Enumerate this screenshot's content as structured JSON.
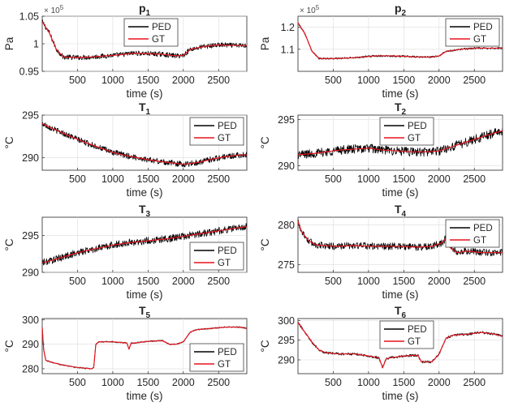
{
  "chart_data": [
    {
      "type": "line",
      "title": "p",
      "title_sub": "1",
      "xlabel": "time (s)",
      "ylabel": "Pa",
      "exponent": "× 10",
      "exponent_power": "5",
      "xlim": [
        0,
        2900
      ],
      "ylim": [
        0.95,
        1.05
      ],
      "xticks": [
        500,
        1000,
        1500,
        2000,
        2500
      ],
      "xtick_labels": [
        "500",
        "1000",
        "1500",
        "2000",
        "2500"
      ],
      "yticks": [
        0.95,
        1.0,
        1.05
      ],
      "ytick_labels": [
        "0.95",
        "1",
        "1.05"
      ],
      "legend": [
        "PED",
        "GT"
      ],
      "legend_loc": "top-middle",
      "series": [
        {
          "name": "PED",
          "color": "#000000",
          "noise": 0.0045,
          "x": [
            0,
            100,
            200,
            300,
            500,
            700,
            900,
            1100,
            1300,
            1500,
            1700,
            1900,
            2000,
            2100,
            2300,
            2500,
            2700,
            2900
          ],
          "y": [
            1.04,
            1.02,
            0.99,
            0.976,
            0.975,
            0.976,
            0.978,
            0.98,
            0.983,
            0.982,
            0.981,
            0.978,
            0.979,
            0.99,
            0.995,
            0.998,
            0.997,
            0.997
          ]
        },
        {
          "name": "GT",
          "color": "#e8141e",
          "noise": 0,
          "x": [
            0,
            100,
            200,
            300,
            500,
            700,
            900,
            1100,
            1300,
            1500,
            1700,
            1900,
            2000,
            2100,
            2300,
            2500,
            2700,
            2900
          ],
          "y": [
            1.04,
            1.02,
            0.99,
            0.976,
            0.975,
            0.976,
            0.978,
            0.98,
            0.983,
            0.982,
            0.981,
            0.978,
            0.979,
            0.99,
            0.995,
            0.998,
            0.997,
            0.997
          ]
        }
      ]
    },
    {
      "type": "line",
      "title": "p",
      "title_sub": "2",
      "xlabel": "time (s)",
      "ylabel": "Pa",
      "exponent": "× 10",
      "exponent_power": "5",
      "xlim": [
        0,
        2900
      ],
      "ylim": [
        1.0,
        1.25
      ],
      "xticks": [
        500,
        1000,
        1500,
        2000,
        2500
      ],
      "xtick_labels": [
        "500",
        "1000",
        "1500",
        "2000",
        "2500"
      ],
      "yticks": [
        1.1,
        1.2
      ],
      "ytick_labels": [
        "1.1",
        "1.2"
      ],
      "legend": [
        "PED",
        "GT"
      ],
      "legend_loc": "top-right",
      "series": [
        {
          "name": "PED",
          "color": "#000000",
          "noise": 0.004,
          "x": [
            0,
            100,
            200,
            300,
            500,
            700,
            900,
            1100,
            1300,
            1500,
            1700,
            1900,
            2000,
            2100,
            2300,
            2500,
            2700,
            2900
          ],
          "y": [
            1.22,
            1.17,
            1.09,
            1.058,
            1.058,
            1.06,
            1.065,
            1.07,
            1.07,
            1.068,
            1.065,
            1.065,
            1.07,
            1.09,
            1.1,
            1.105,
            1.105,
            1.105
          ]
        },
        {
          "name": "GT",
          "color": "#e8141e",
          "noise": 0,
          "x": [
            0,
            100,
            200,
            300,
            500,
            700,
            900,
            1100,
            1300,
            1500,
            1700,
            1900,
            2000,
            2100,
            2300,
            2500,
            2700,
            2900
          ],
          "y": [
            1.22,
            1.17,
            1.09,
            1.058,
            1.058,
            1.06,
            1.065,
            1.07,
            1.07,
            1.068,
            1.065,
            1.065,
            1.07,
            1.09,
            1.1,
            1.105,
            1.105,
            1.105
          ]
        }
      ]
    },
    {
      "type": "line",
      "title": "T",
      "title_sub": "1",
      "xlabel": "time (s)",
      "ylabel": "°C",
      "exponent": "",
      "exponent_power": "",
      "xlim": [
        0,
        2900
      ],
      "ylim": [
        288.5,
        295
      ],
      "xticks": [
        500,
        1000,
        1500,
        2000,
        2500
      ],
      "xtick_labels": [
        "500",
        "1000",
        "1500",
        "2000",
        "2500"
      ],
      "yticks": [
        290,
        295
      ],
      "ytick_labels": [
        "290",
        "295"
      ],
      "legend": [
        "PED",
        "GT"
      ],
      "legend_loc": "top-right",
      "series": [
        {
          "name": "PED",
          "color": "#000000",
          "noise": 0.35,
          "x": [
            0,
            200,
            400,
            600,
            800,
            1000,
            1200,
            1400,
            1600,
            1800,
            2000,
            2200,
            2400,
            2600,
            2800,
            2900
          ],
          "y": [
            294,
            293.2,
            292.5,
            291.8,
            291.2,
            290.6,
            290.2,
            289.9,
            289.6,
            289.4,
            289.2,
            289.4,
            289.8,
            290.1,
            290.3,
            290.3
          ]
        },
        {
          "name": "GT",
          "color": "#e8141e",
          "noise": 0,
          "x": [
            0,
            200,
            400,
            600,
            800,
            1000,
            1200,
            1400,
            1600,
            1800,
            2000,
            2200,
            2400,
            2600,
            2800,
            2900
          ],
          "y": [
            294,
            293.2,
            292.5,
            291.8,
            291.2,
            290.6,
            290.2,
            289.9,
            289.6,
            289.4,
            289.2,
            289.4,
            289.8,
            290.1,
            290.3,
            290.3
          ]
        }
      ]
    },
    {
      "type": "line",
      "title": "T",
      "title_sub": "2",
      "xlabel": "time (s)",
      "ylabel": "°C",
      "exponent": "",
      "exponent_power": "",
      "xlim": [
        0,
        2900
      ],
      "ylim": [
        289.5,
        295.5
      ],
      "xticks": [
        500,
        1000,
        1500,
        2000,
        2500
      ],
      "xtick_labels": [
        "500",
        "1000",
        "1500",
        "2000",
        "2500"
      ],
      "yticks": [
        290,
        295
      ],
      "ytick_labels": [
        "290",
        "295"
      ],
      "legend": [
        "PED",
        "GT"
      ],
      "legend_loc": "top-middle",
      "series": [
        {
          "name": "PED",
          "color": "#000000",
          "noise": 0.5,
          "x": [
            0,
            200,
            400,
            600,
            800,
            1000,
            1200,
            1400,
            1600,
            1800,
            2000,
            2200,
            2400,
            2600,
            2800,
            2900
          ],
          "y": [
            291.2,
            291.3,
            291.5,
            291.7,
            291.8,
            291.9,
            291.7,
            291.6,
            291.5,
            291.5,
            291.6,
            292.1,
            292.6,
            293.1,
            293.6,
            293.8
          ]
        },
        {
          "name": "GT",
          "color": "#e8141e",
          "noise": 0,
          "x": [
            0,
            200,
            400,
            600,
            800,
            1000,
            1200,
            1400,
            1600,
            1800,
            2000,
            2200,
            2400,
            2600,
            2800,
            2900
          ],
          "y": [
            291.2,
            291.3,
            291.5,
            291.7,
            291.8,
            291.9,
            291.7,
            291.6,
            291.5,
            291.5,
            291.6,
            292.1,
            292.6,
            293.1,
            293.6,
            293.8
          ]
        }
      ]
    },
    {
      "type": "line",
      "title": "T",
      "title_sub": "3",
      "xlabel": "time (s)",
      "ylabel": "°C",
      "exponent": "",
      "exponent_power": "",
      "xlim": [
        0,
        2900
      ],
      "ylim": [
        290,
        297.5
      ],
      "xticks": [
        500,
        1000,
        1500,
        2000,
        2500
      ],
      "xtick_labels": [
        "500",
        "1000",
        "1500",
        "2000",
        "2500"
      ],
      "yticks": [
        290,
        295
      ],
      "ytick_labels": [
        "290",
        "295"
      ],
      "legend": [
        "PED",
        "GT"
      ],
      "legend_loc": "bottom-right",
      "series": [
        {
          "name": "PED",
          "color": "#000000",
          "noise": 0.5,
          "x": [
            0,
            200,
            400,
            600,
            800,
            1000,
            1200,
            1400,
            1600,
            1800,
            2000,
            2200,
            2400,
            2600,
            2800,
            2900
          ],
          "y": [
            291.3,
            291.8,
            292.4,
            292.9,
            293.3,
            293.7,
            294,
            294.2,
            294.4,
            294.6,
            294.9,
            295.2,
            295.5,
            295.8,
            296.1,
            296.2
          ]
        },
        {
          "name": "GT",
          "color": "#e8141e",
          "noise": 0,
          "x": [
            0,
            200,
            400,
            600,
            800,
            1000,
            1200,
            1400,
            1600,
            1800,
            2000,
            2200,
            2400,
            2600,
            2800,
            2900
          ],
          "y": [
            291.3,
            291.8,
            292.4,
            292.9,
            293.3,
            293.7,
            294,
            294.2,
            294.4,
            294.6,
            294.9,
            295.2,
            295.5,
            295.8,
            296.1,
            296.2
          ]
        }
      ]
    },
    {
      "type": "line",
      "title": "T",
      "title_sub": "4",
      "xlabel": "time (s)",
      "ylabel": "°C",
      "exponent": "",
      "exponent_power": "",
      "xlim": [
        0,
        2900
      ],
      "ylim": [
        274,
        281
      ],
      "xticks": [
        500,
        1000,
        1500,
        2000,
        2500
      ],
      "xtick_labels": [
        "500",
        "1000",
        "1500",
        "2000",
        "2500"
      ],
      "yticks": [
        275,
        280
      ],
      "ytick_labels": [
        "275",
        "280"
      ],
      "legend": [
        "PED",
        "GT"
      ],
      "legend_loc": "top-right",
      "series": [
        {
          "name": "PED",
          "color": "#000000",
          "noise": 0.45,
          "x": [
            0,
            50,
            150,
            250,
            500,
            800,
            1100,
            1400,
            1700,
            1900,
            2050,
            2100,
            2150,
            2250,
            2400,
            2600,
            2800,
            2900
          ],
          "y": [
            280.5,
            279.2,
            278,
            277.5,
            277.3,
            277.4,
            277.3,
            277.3,
            277.2,
            277.3,
            277.8,
            278.4,
            277.2,
            276.5,
            276.7,
            276.5,
            276.5,
            276.5
          ]
        },
        {
          "name": "GT",
          "color": "#e8141e",
          "noise": 0,
          "x": [
            0,
            50,
            150,
            250,
            500,
            800,
            1100,
            1400,
            1700,
            1900,
            2050,
            2100,
            2150,
            2250,
            2400,
            2600,
            2800,
            2900
          ],
          "y": [
            280.5,
            279.2,
            278,
            277.5,
            277.3,
            277.4,
            277.3,
            277.3,
            277.2,
            277.3,
            277.8,
            278.4,
            277.2,
            276.5,
            276.7,
            276.5,
            276.5,
            276.5
          ]
        }
      ]
    },
    {
      "type": "line",
      "title": "T",
      "title_sub": "5",
      "xlabel": "time (s)",
      "ylabel": "°C",
      "exponent": "",
      "exponent_power": "",
      "xlim": [
        0,
        2900
      ],
      "ylim": [
        278,
        300.5
      ],
      "xticks": [
        500,
        1000,
        1500,
        2000,
        2500
      ],
      "xtick_labels": [
        "500",
        "1000",
        "1500",
        "2000",
        "2500"
      ],
      "yticks": [
        280,
        290,
        300
      ],
      "ytick_labels": [
        "280",
        "290",
        "300"
      ],
      "legend": [
        "PED",
        "GT"
      ],
      "legend_loc": "bottom-right",
      "series": [
        {
          "name": "PED",
          "color": "#000000",
          "noise": 0.25,
          "x": [
            0,
            20,
            50,
            150,
            300,
            500,
            700,
            730,
            760,
            800,
            1000,
            1200,
            1230,
            1260,
            1300,
            1500,
            1700,
            1800,
            1900,
            2000,
            2100,
            2200,
            2400,
            2600,
            2800,
            2900
          ],
          "y": [
            297,
            288,
            283.5,
            282.5,
            281.5,
            280.5,
            280,
            280.5,
            290,
            291,
            291,
            290.5,
            288,
            290.5,
            290.5,
            291.2,
            291.5,
            290,
            290,
            291,
            295,
            296,
            296.5,
            297,
            297,
            296.5
          ]
        },
        {
          "name": "GT",
          "color": "#e8141e",
          "noise": 0,
          "x": [
            0,
            20,
            50,
            150,
            300,
            500,
            700,
            730,
            760,
            800,
            1000,
            1200,
            1230,
            1260,
            1300,
            1500,
            1700,
            1800,
            1900,
            2000,
            2100,
            2200,
            2400,
            2600,
            2800,
            2900
          ],
          "y": [
            297,
            288,
            283.5,
            282.5,
            281.5,
            280.5,
            280,
            280.5,
            290,
            291,
            291,
            290.5,
            288,
            290.5,
            290.5,
            291.2,
            291.5,
            290,
            290,
            291,
            295,
            296,
            296.5,
            297,
            297,
            296.5
          ]
        }
      ]
    },
    {
      "type": "line",
      "title": "T",
      "title_sub": "6",
      "xlabel": "time (s)",
      "ylabel": "°C",
      "exponent": "",
      "exponent_power": "",
      "xlim": [
        0,
        2900
      ],
      "ylim": [
        286.5,
        300.5
      ],
      "xticks": [
        500,
        1000,
        1500,
        2000,
        2500
      ],
      "xtick_labels": [
        "500",
        "1000",
        "1500",
        "2000",
        "2500"
      ],
      "yticks": [
        290,
        295,
        300
      ],
      "ytick_labels": [
        "290",
        "295",
        "300"
      ],
      "legend": [
        "PED",
        "GT"
      ],
      "legend_loc": "top-middle",
      "series": [
        {
          "name": "PED",
          "color": "#000000",
          "noise": 0.3,
          "x": [
            0,
            100,
            200,
            300,
            400,
            600,
            800,
            1000,
            1150,
            1200,
            1250,
            1300,
            1500,
            1700,
            1750,
            1800,
            1900,
            2000,
            2100,
            2200,
            2400,
            2600,
            2800,
            2900
          ],
          "y": [
            299.5,
            297,
            294.5,
            292.5,
            291.8,
            291.5,
            291.5,
            291,
            290.5,
            288,
            290.3,
            290.5,
            291,
            291.2,
            289.5,
            289.5,
            289.5,
            291.5,
            295.5,
            296.3,
            296.5,
            297,
            296.5,
            296
          ]
        },
        {
          "name": "GT",
          "color": "#e8141e",
          "noise": 0,
          "x": [
            0,
            100,
            200,
            300,
            400,
            600,
            800,
            1000,
            1150,
            1200,
            1250,
            1300,
            1500,
            1700,
            1750,
            1800,
            1900,
            2000,
            2100,
            2200,
            2400,
            2600,
            2800,
            2900
          ],
          "y": [
            299.5,
            297,
            294.5,
            292.5,
            291.8,
            291.5,
            291.5,
            291,
            290.5,
            288,
            290.3,
            290.5,
            291,
            291.2,
            289.5,
            289.5,
            289.5,
            291.5,
            295.5,
            296.3,
            296.5,
            297,
            296.5,
            296
          ]
        }
      ]
    }
  ]
}
